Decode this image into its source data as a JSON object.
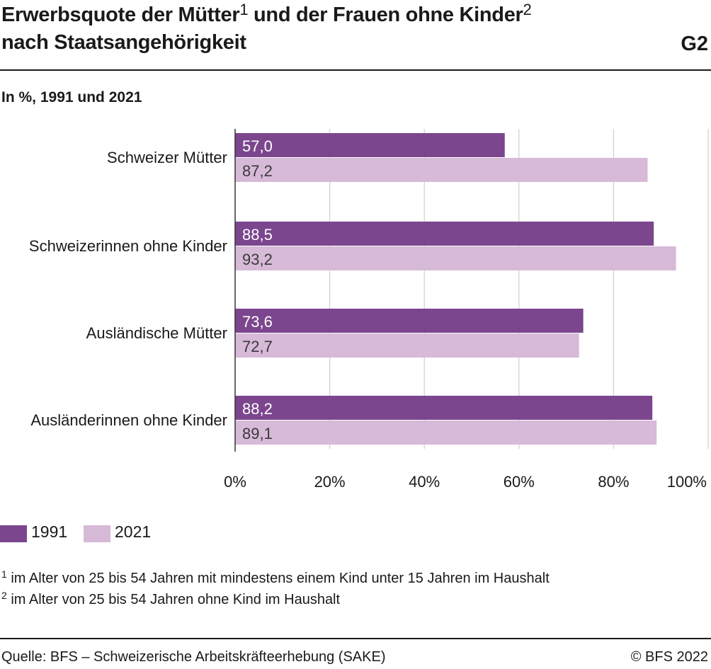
{
  "header": {
    "title_line1_part1": "Erwerbsquote der Mütter",
    "title_sup1": "1",
    "title_line1_part2": " und der Frauen ohne Kinder",
    "title_sup2": "2",
    "title_line2": "nach Staatsangehörigkeit",
    "graphic_number": "G2",
    "subtitle": "In %, 1991 und 2021"
  },
  "chart_data": {
    "type": "bar",
    "orientation": "horizontal",
    "categories": [
      "Schweizer Mütter",
      "Schweizerinnen ohne Kinder",
      "Ausländische Mütter",
      "Ausländerinnen ohne Kinder"
    ],
    "series": [
      {
        "name": "1991",
        "values": [
          57.0,
          88.5,
          73.6,
          88.2
        ],
        "labels": [
          "57,0",
          "88,5",
          "73,6",
          "88,2"
        ],
        "color": "#7b468e"
      },
      {
        "name": "2021",
        "values": [
          87.2,
          93.2,
          72.7,
          89.1
        ],
        "labels": [
          "87,2",
          "93,2",
          "72,7",
          "89,1"
        ],
        "color": "#d7b9d8"
      }
    ],
    "xlim": [
      0,
      100
    ],
    "xticks": [
      0,
      20,
      40,
      60,
      80,
      100
    ],
    "xtick_labels": [
      "0%",
      "20%",
      "40%",
      "60%",
      "80%",
      "100%"
    ],
    "grid": "vertical",
    "legend": "bottom-left"
  },
  "legend": {
    "items": [
      {
        "label": "1991",
        "color": "#7b468e"
      },
      {
        "label": "2021",
        "color": "#d7b9d8"
      }
    ]
  },
  "notes": [
    {
      "mark": "1",
      "text": " im Alter von 25 bis 54 Jahren mit mindestens einem Kind unter 15 Jahren im Haushalt"
    },
    {
      "mark": "2",
      "text": " im Alter von 25 bis 54 Jahren ohne Kind im Haushalt"
    }
  ],
  "footer": {
    "source": "Quelle: BFS – Schweizerische Arbeitskräfteerhebung (SAKE)",
    "copyright": "© BFS 2022"
  }
}
